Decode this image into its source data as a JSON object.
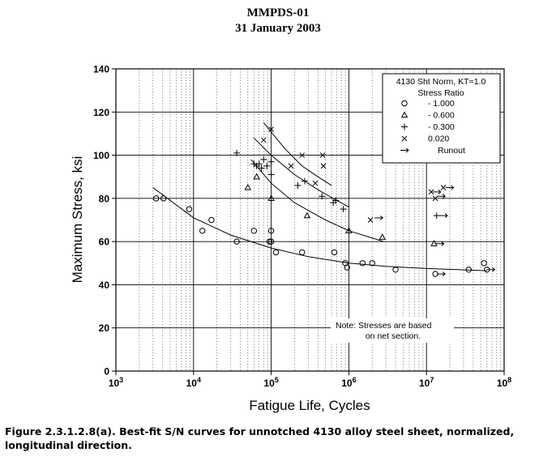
{
  "header": {
    "line1": "MMPDS-01",
    "line2": "31 January 2003"
  },
  "caption": "Figure 2.3.1.2.8(a).  Best-fit S/N curves for unnotched 4130 alloy steel sheet, normalized, longitudinal direction.",
  "chart_data": {
    "type": "scatter",
    "title": "",
    "xlabel": "Fatigue Life, Cycles",
    "ylabel": "Maximum Stress, ksi",
    "x_scale": "log",
    "xlim": [
      1000,
      100000000
    ],
    "ylim": [
      0,
      140
    ],
    "x_ticks": [
      {
        "base": "10",
        "exp": "3"
      },
      {
        "base": "10",
        "exp": "4"
      },
      {
        "base": "10",
        "exp": "5"
      },
      {
        "base": "10",
        "exp": "6"
      },
      {
        "base": "10",
        "exp": "7"
      },
      {
        "base": "10",
        "exp": "8"
      }
    ],
    "y_ticks": [
      "0",
      "20",
      "40",
      "60",
      "80",
      "100",
      "120",
      "140"
    ],
    "grid": true,
    "legend": {
      "placement": "top-right",
      "title_line1": "4130 Sht Norm, KT=1.0",
      "title_line2": "Stress Ratio",
      "entries": [
        {
          "marker": "circle",
          "label": "- 1.000"
        },
        {
          "marker": "triangle",
          "label": "- 0.600"
        },
        {
          "marker": "plus",
          "label": "- 0.300"
        },
        {
          "marker": "cross",
          "label": "0.020"
        },
        {
          "marker": "arrow",
          "label": "Runout"
        }
      ]
    },
    "note": {
      "line1": "Note:   Stresses are based",
      "line2": "on net section."
    },
    "series": [
      {
        "marker": "circle",
        "points": [
          [
            3300,
            80
          ],
          [
            4100,
            80
          ],
          [
            8800,
            75
          ],
          [
            13000,
            65
          ],
          [
            17000,
            70
          ],
          [
            36000,
            60
          ],
          [
            60000,
            65
          ],
          [
            95000,
            60
          ],
          [
            100000,
            65
          ],
          [
            100000,
            60
          ],
          [
            115000,
            55
          ],
          [
            250000,
            55
          ],
          [
            650000,
            55
          ],
          [
            900000,
            50
          ],
          [
            950000,
            48
          ],
          [
            1500000,
            50
          ],
          [
            2000000,
            50
          ],
          [
            4000000,
            47
          ],
          [
            13000000,
            45
          ],
          [
            35000000,
            47
          ],
          [
            55000000,
            50
          ],
          [
            60000000,
            47
          ]
        ],
        "runouts": [
          [
            14000000,
            45
          ],
          [
            61000000,
            47
          ]
        ],
        "curve": [
          [
            3000,
            85
          ],
          [
            10000,
            71
          ],
          [
            30000,
            63
          ],
          [
            100000,
            57
          ],
          [
            300000,
            53
          ],
          [
            1000000,
            50
          ],
          [
            3000000,
            48.5
          ],
          [
            10000000,
            47.5
          ],
          [
            60000000,
            46.5
          ]
        ]
      },
      {
        "marker": "triangle",
        "points": [
          [
            50000,
            85
          ],
          [
            65000,
            90
          ],
          [
            100000,
            80
          ],
          [
            290000,
            72
          ],
          [
            1000000,
            65
          ],
          [
            2700000,
            62
          ],
          [
            12500000,
            59
          ]
        ],
        "runouts": [
          [
            13500000,
            59
          ]
        ],
        "curve": [
          [
            55000,
            98
          ],
          [
            100000,
            87
          ],
          [
            200000,
            78
          ],
          [
            500000,
            70
          ],
          [
            1000000,
            65
          ],
          [
            2800000,
            60
          ]
        ]
      },
      {
        "marker": "plus",
        "points": [
          [
            36000,
            101
          ],
          [
            60000,
            96
          ],
          [
            65000,
            95
          ],
          [
            70000,
            96
          ],
          [
            75000,
            94
          ],
          [
            80000,
            98
          ],
          [
            88000,
            95
          ],
          [
            100000,
            97
          ],
          [
            100000,
            91
          ],
          [
            220000,
            86
          ],
          [
            270000,
            88
          ],
          [
            450000,
            81
          ],
          [
            630000,
            78
          ],
          [
            680000,
            79
          ],
          [
            850000,
            75
          ],
          [
            13500000,
            72
          ]
        ],
        "runouts": [
          [
            15000000,
            72
          ]
        ],
        "curve": [
          [
            60000,
            108
          ],
          [
            100000,
            100
          ],
          [
            200000,
            91
          ],
          [
            400000,
            84
          ],
          [
            700000,
            79
          ],
          [
            1000000,
            76
          ]
        ]
      },
      {
        "marker": "cross",
        "points": [
          [
            80000,
            107
          ],
          [
            100000,
            112
          ],
          [
            180000,
            95
          ],
          [
            250000,
            100
          ],
          [
            370000,
            87
          ],
          [
            460000,
            100
          ],
          [
            470000,
            95
          ],
          [
            1900000,
            70
          ],
          [
            11500000,
            83
          ],
          [
            13000000,
            80
          ],
          [
            16500000,
            85
          ]
        ],
        "runouts": [
          [
            2200000,
            71
          ],
          [
            12300000,
            83
          ],
          [
            14000000,
            81
          ],
          [
            18000000,
            85
          ]
        ],
        "curve": [
          [
            80000,
            115
          ],
          [
            150000,
            103
          ],
          [
            250000,
            95
          ],
          [
            400000,
            90
          ],
          [
            600000,
            86
          ]
        ]
      }
    ]
  }
}
